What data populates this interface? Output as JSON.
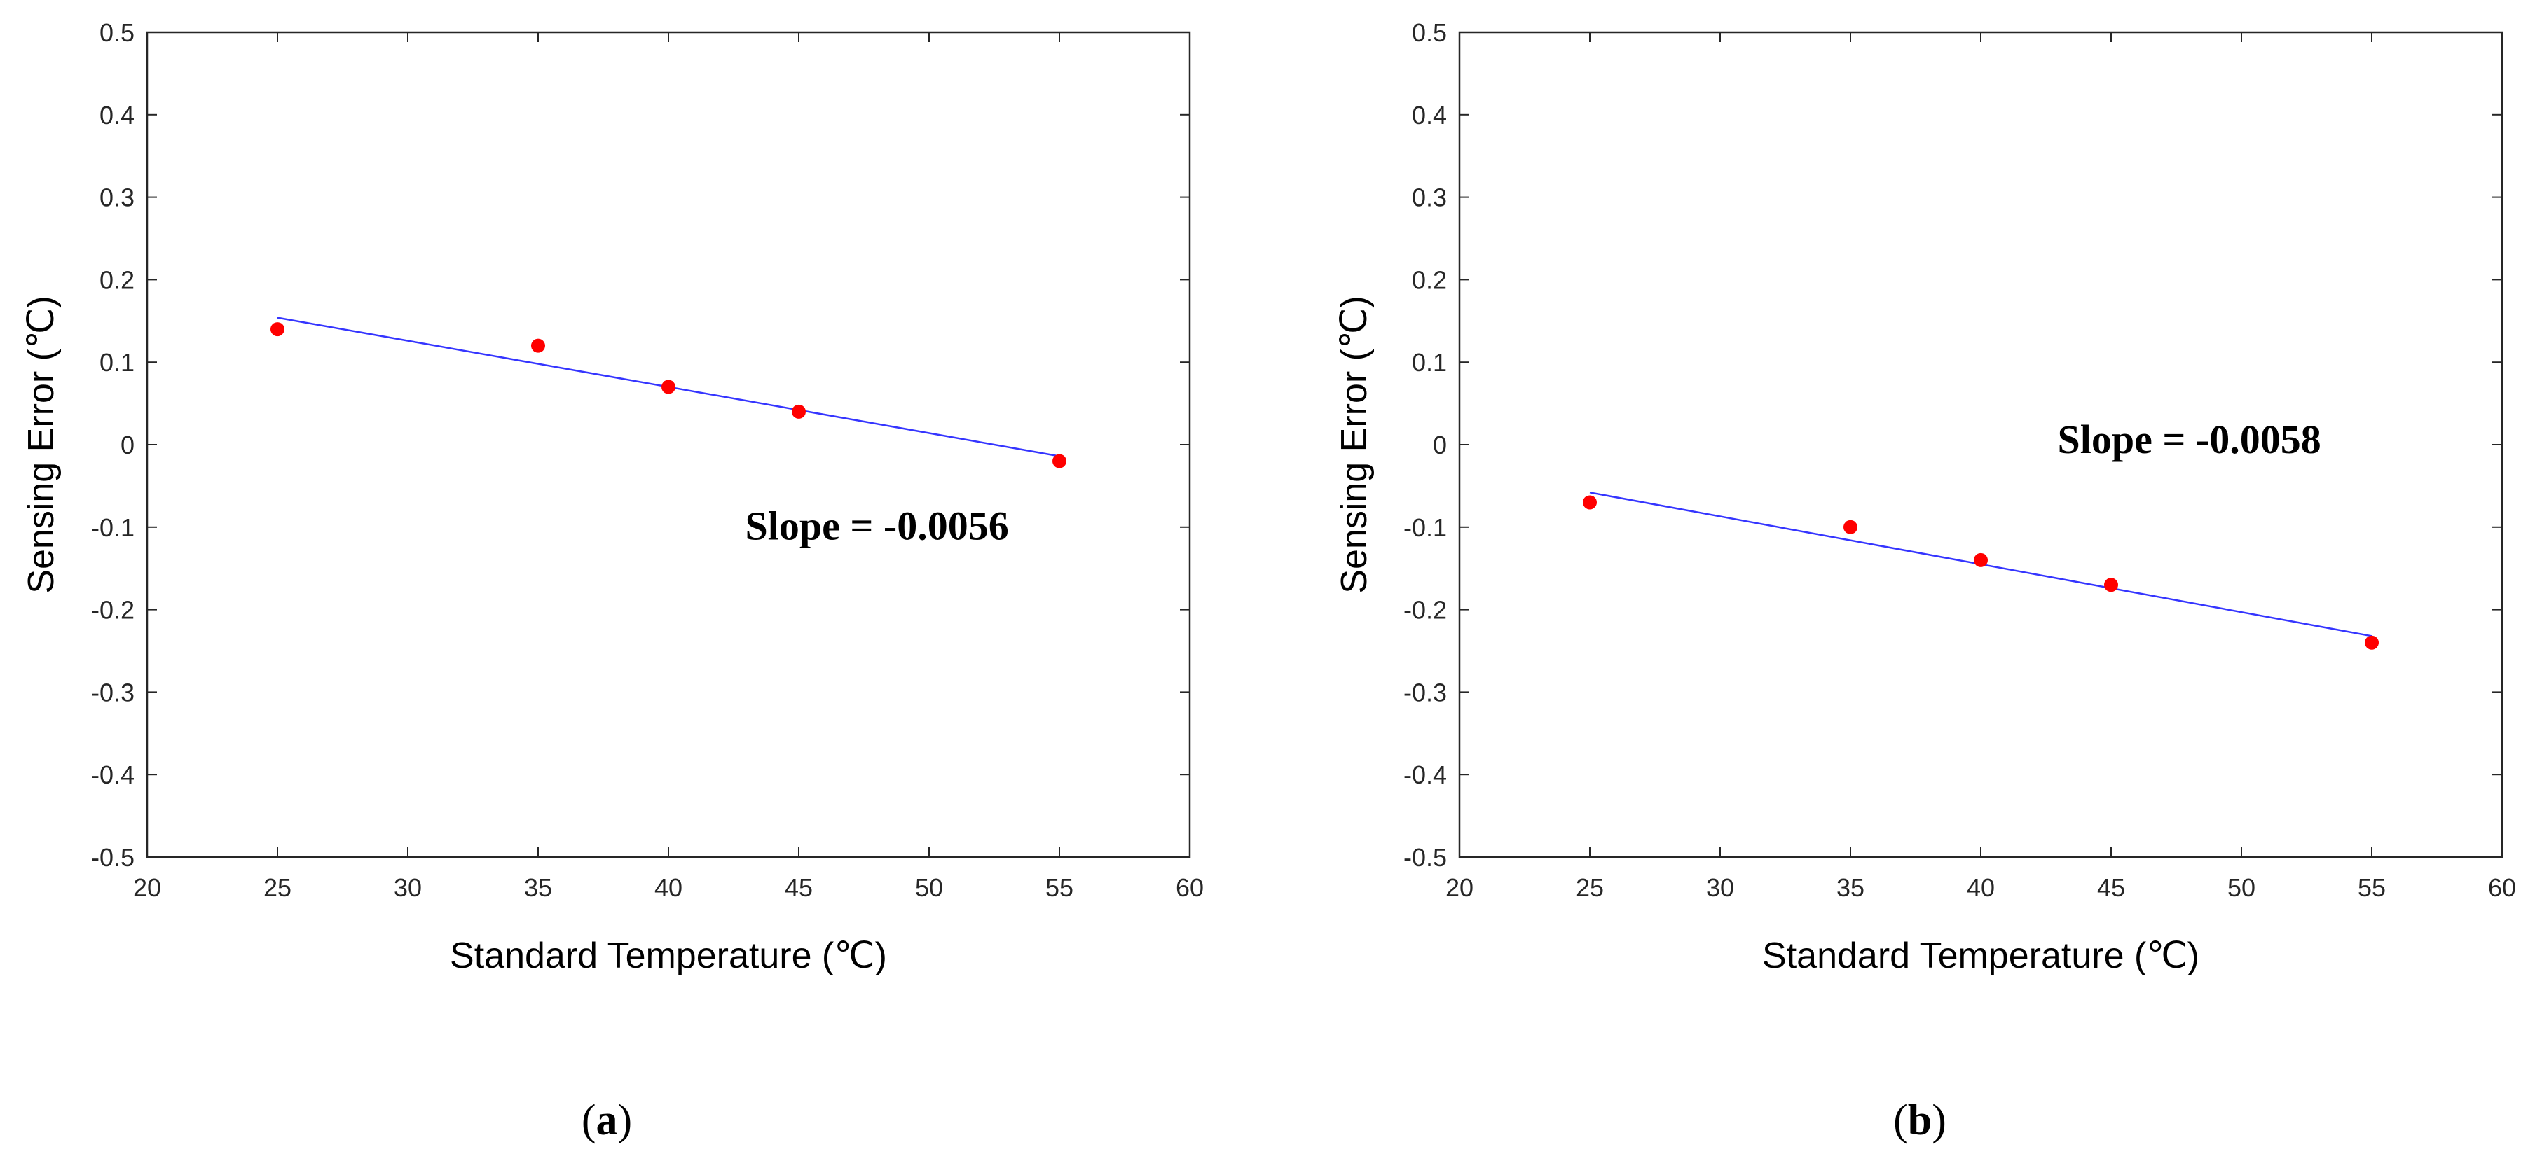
{
  "colors": {
    "fit_line": "#3535ff",
    "marker": "#ff0000"
  },
  "chart_data": [
    {
      "type": "scatter",
      "panel": "a",
      "panel_label": "a",
      "xlabel": "Standard Temperature (℃)",
      "ylabel": "Sensing Error (℃)",
      "xlim": [
        20,
        60
      ],
      "ylim": [
        -0.5,
        0.5
      ],
      "xticks": [
        20,
        25,
        30,
        35,
        40,
        45,
        50,
        55,
        60
      ],
      "xtick_labels": [
        "20",
        "25",
        "30",
        "35",
        "40",
        "45",
        "50",
        "55",
        "60"
      ],
      "yticks": [
        0.5,
        0.4,
        0.3,
        0.2,
        0.1,
        0,
        -0.1,
        -0.2,
        -0.3,
        -0.4,
        -0.5
      ],
      "ytick_labels": [
        "0.5",
        "0.4",
        "0.3",
        "0.2",
        "0.1",
        "0",
        "-0.1",
        "-0.2",
        "-0.3",
        "-0.4",
        "-0.5"
      ],
      "points": {
        "x": [
          25,
          35,
          40,
          45,
          55
        ],
        "y": [
          0.14,
          0.12,
          0.07,
          0.04,
          -0.02
        ]
      },
      "fit": {
        "x": [
          25,
          55
        ],
        "y": [
          0.154,
          -0.014
        ]
      },
      "annotation": {
        "text": "Slope = -0.0056",
        "x": 48,
        "y": -0.115
      }
    },
    {
      "type": "scatter",
      "panel": "b",
      "panel_label": "b",
      "xlabel": "Standard Temperature (℃)",
      "ylabel": "Sensing Error (℃)",
      "xlim": [
        20,
        60
      ],
      "ylim": [
        -0.5,
        0.5
      ],
      "xticks": [
        20,
        25,
        30,
        35,
        40,
        45,
        50,
        55,
        60
      ],
      "xtick_labels": [
        "20",
        "25",
        "30",
        "35",
        "40",
        "45",
        "50",
        "55",
        "60"
      ],
      "yticks": [
        0.5,
        0.4,
        0.3,
        0.2,
        0.1,
        0,
        -0.1,
        -0.2,
        -0.3,
        -0.4,
        -0.5
      ],
      "ytick_labels": [
        "0.5",
        "0.4",
        "0.3",
        "0.2",
        "0.1",
        "0",
        "-0.1",
        "-0.2",
        "-0.3",
        "-0.4",
        "-0.5"
      ],
      "points": {
        "x": [
          25,
          35,
          40,
          45,
          55
        ],
        "y": [
          -0.07,
          -0.1,
          -0.14,
          -0.17,
          -0.24
        ]
      },
      "fit": {
        "x": [
          25,
          55
        ],
        "y": [
          -0.058,
          -0.232
        ]
      },
      "annotation": {
        "text": "Slope = -0.0058",
        "x": 48,
        "y": -0.01
      }
    }
  ]
}
